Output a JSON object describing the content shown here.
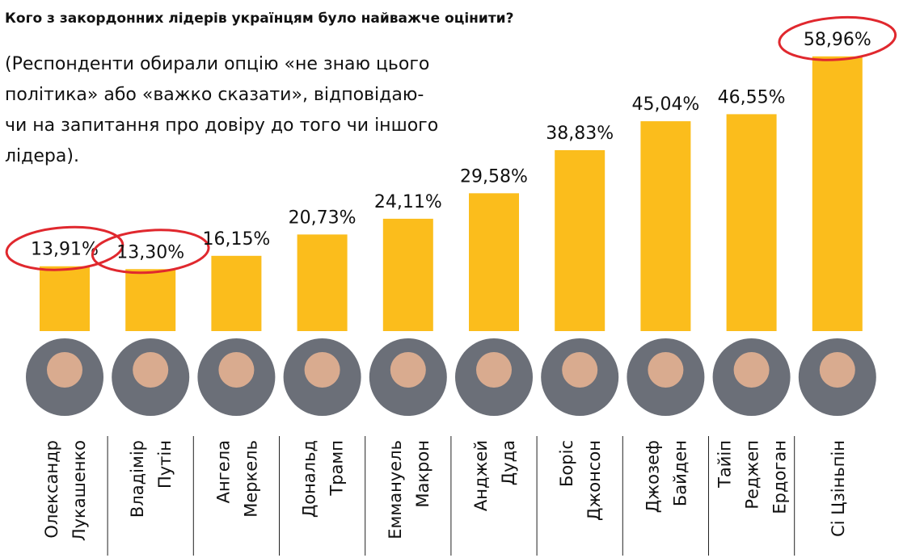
{
  "chart_data": {
    "type": "bar",
    "title": "Кого з закордонних лідерів українцям було найважче оцінити?",
    "subtitle": [
      "(Респонденти обирали опцію «не знаю цього",
      "політика» або «важко сказати», відповідаю-",
      "чи на запитання про довіру до того чи іншого",
      "лідера)."
    ],
    "categories": [
      [
        "Олександр",
        "Лукашенко"
      ],
      [
        "Владімір",
        "Путін"
      ],
      [
        "Ангела",
        "Меркель"
      ],
      [
        "Дональд",
        "Трамп"
      ],
      [
        "Еммануель",
        "Макрон"
      ],
      [
        "Анджей",
        "Дуда"
      ],
      [
        "Боріс",
        "Джонсон"
      ],
      [
        "Джозеф",
        "Байден"
      ],
      [
        "Тайіп",
        "Реджеп",
        "Ердоган"
      ],
      [
        "Сі Цзіньпін"
      ]
    ],
    "values": [
      13.91,
      13.3,
      16.15,
      20.73,
      24.11,
      29.58,
      38.83,
      45.04,
      46.55,
      58.96
    ],
    "value_labels": [
      "13,91%",
      "13,30%",
      "16,15%",
      "20,73%",
      "24,11%",
      "29,58%",
      "38,83%",
      "45,04%",
      "46,55%",
      "58,96%"
    ],
    "color": "#fbbd1c",
    "highlighted": [
      0,
      1,
      9
    ],
    "highlight_color": "#e0282e"
  }
}
